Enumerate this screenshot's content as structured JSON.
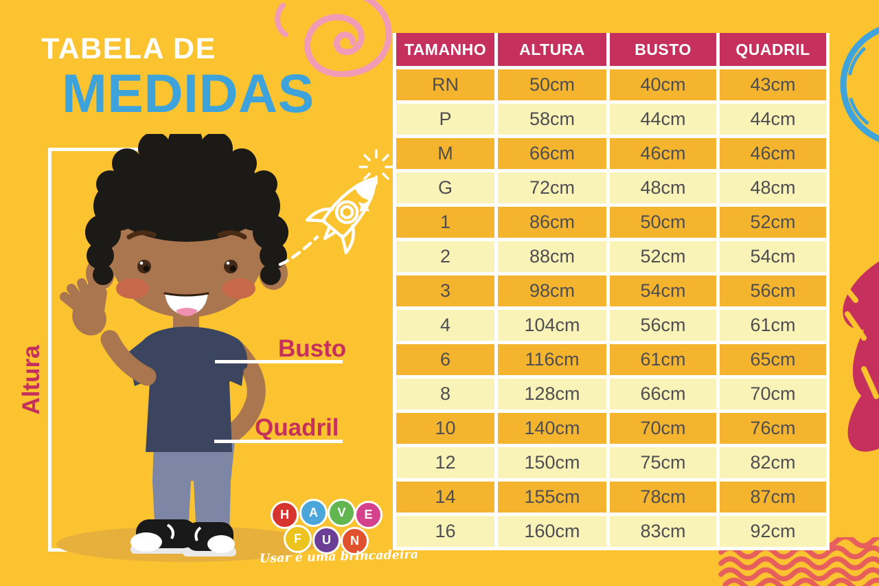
{
  "poster": {
    "title_line1": "TABELA DE",
    "title_line2": "MEDIDAS",
    "measure_labels": {
      "altura": "Altura",
      "busto": "Busto",
      "quadril": "Quadril"
    }
  },
  "chart_data": {
    "type": "table",
    "title": "Tabela de Medidas",
    "columns": [
      "TAMANHO",
      "ALTURA",
      "BUSTO",
      "QUADRIL"
    ],
    "rows": [
      [
        "RN",
        "50cm",
        "40cm",
        "43cm"
      ],
      [
        "P",
        "58cm",
        "44cm",
        "44cm"
      ],
      [
        "M",
        "66cm",
        "46cm",
        "46cm"
      ],
      [
        "G",
        "72cm",
        "48cm",
        "48cm"
      ],
      [
        "1",
        "86cm",
        "50cm",
        "52cm"
      ],
      [
        "2",
        "88cm",
        "52cm",
        "54cm"
      ],
      [
        "3",
        "98cm",
        "54cm",
        "56cm"
      ],
      [
        "4",
        "104cm",
        "56cm",
        "61cm"
      ],
      [
        "6",
        "116cm",
        "61cm",
        "65cm"
      ],
      [
        "8",
        "128cm",
        "66cm",
        "70cm"
      ],
      [
        "10",
        "140cm",
        "70cm",
        "76cm"
      ],
      [
        "12",
        "150cm",
        "75cm",
        "82cm"
      ],
      [
        "14",
        "155cm",
        "78cm",
        "87cm"
      ],
      [
        "16",
        "160cm",
        "83cm",
        "92cm"
      ]
    ]
  },
  "logo": {
    "circles": [
      {
        "letter": "H",
        "color": "#D6352F"
      },
      {
        "letter": "A",
        "color": "#4BA6DC"
      },
      {
        "letter": "V",
        "color": "#62B64F"
      },
      {
        "letter": "E",
        "color": "#D4418D"
      },
      {
        "letter": "F",
        "color": "#EDC41F"
      },
      {
        "letter": "U",
        "color": "#6C3F97"
      },
      {
        "letter": "N",
        "color": "#E0512D"
      }
    ],
    "tagline": "Usar é uma brincadeira"
  },
  "illustration": {
    "subject": "waving boy with curly hair, navy t-shirt, blue pants, black sneakers",
    "skin_color": "#A9764F",
    "shirt_color": "#3B4560",
    "pants_color": "#7D86A5"
  },
  "decorations": [
    "rocket-doodle-icon",
    "sparkle-icon",
    "pink-spiral-icon",
    "blue-arc-icon",
    "crimson-brush-icon",
    "red-waves-icon"
  ],
  "colors": {
    "background": "#FBC32F",
    "header_bg": "#C5305C",
    "row_dark": "#F5B42E",
    "row_pale": "#FAF3B8",
    "cell_text": "#4E4E50",
    "title_accent": "#3EA2DB",
    "label_crimson": "#C5305C",
    "wave_red": "#E65F5D",
    "spiral_pink": "#F19CB6",
    "arc_blue": "#3FA3DC"
  }
}
